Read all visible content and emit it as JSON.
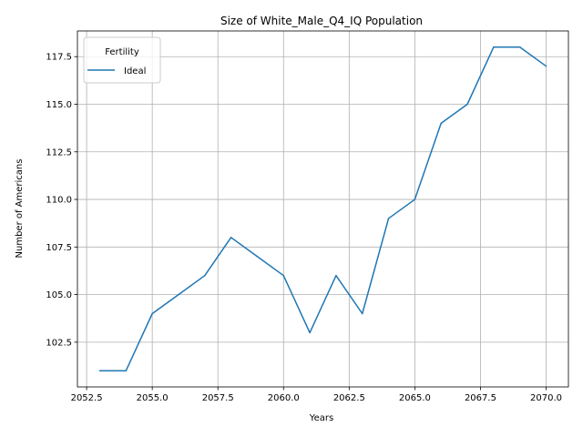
{
  "chart_data": {
    "type": "line",
    "title": "Size of White_Male_Q4_IQ Population",
    "xlabel": "Years",
    "ylabel": "Number of Americans",
    "xlim": [
      2052.15,
      2070.85
    ],
    "ylim": [
      100.15,
      118.85
    ],
    "x_ticks": [
      2052.5,
      2055.0,
      2057.5,
      2060.0,
      2062.5,
      2065.0,
      2067.5,
      2070.0
    ],
    "x_tick_labels": [
      "2052.5",
      "2055.0",
      "2057.5",
      "2060.0",
      "2062.5",
      "2065.0",
      "2067.5",
      "2070.0"
    ],
    "y_ticks": [
      102.5,
      105.0,
      107.5,
      110.0,
      112.5,
      115.0,
      117.5
    ],
    "y_tick_labels": [
      "102.5",
      "105.0",
      "107.5",
      "110.0",
      "112.5",
      "115.0",
      "117.5"
    ],
    "grid": true,
    "legend": {
      "title": "Fertility",
      "position": "top-left"
    },
    "series": [
      {
        "name": "Ideal",
        "color": "#1f77b4",
        "x": [
          2053,
          2054,
          2055,
          2056,
          2057,
          2058,
          2059,
          2060,
          2061,
          2062,
          2063,
          2064,
          2065,
          2066,
          2067,
          2068,
          2069,
          2070
        ],
        "y": [
          101,
          101,
          104,
          105,
          106,
          108,
          107,
          106,
          103,
          106,
          104,
          109,
          110,
          114,
          115,
          118,
          118,
          117
        ]
      }
    ]
  }
}
